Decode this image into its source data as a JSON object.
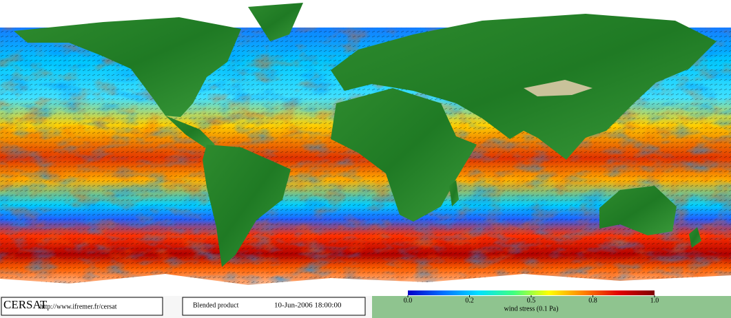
{
  "footer": {
    "logo": "CERSAT",
    "url": "http://www.ifremer.fr/cersat",
    "product": "Blended product",
    "datetime": "10-Jun-2006 18:00:00"
  },
  "colorbar": {
    "label": "wind stress (0.1 Pa)",
    "ticks": [
      {
        "value": 0,
        "label": "0.0"
      },
      {
        "value": 0.2,
        "label": "0.2"
      },
      {
        "value": 0.5,
        "label": "0.5"
      },
      {
        "value": 0.8,
        "label": "0.8"
      },
      {
        "value": 1,
        "label": "1.0"
      }
    ],
    "colors": [
      "#0000c8",
      "#0070ff",
      "#00e0ff",
      "#40ff80",
      "#ffff00",
      "#ff8000",
      "#e00000",
      "#800000"
    ]
  }
}
